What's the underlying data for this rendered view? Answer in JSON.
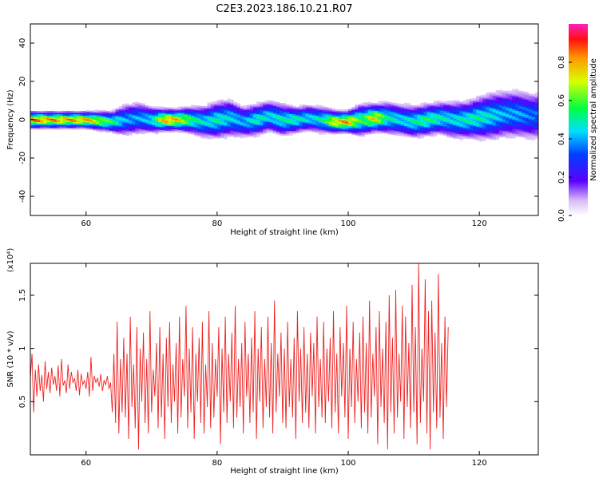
{
  "title": "C2E3.2023.186.10.21.R07",
  "colorbar": {
    "label": "Normalized spectral amplitude",
    "ticks": [
      "0.0",
      "0.2",
      "0.4",
      "0.6",
      "0.8"
    ]
  },
  "colors": {
    "snr_line": "#ee2222",
    "spectrum_peak": "#ff2020",
    "background": "#ffffff"
  },
  "chart_data": [
    {
      "type": "heatmap",
      "xlabel": "Height of straight line (km)",
      "ylabel": "Frequency (Hz)",
      "xlim": [
        51.5,
        129
      ],
      "ylim": [
        -50,
        50
      ],
      "xticks": [
        60,
        80,
        100,
        120
      ],
      "yticks": [
        -40,
        -20,
        0,
        20,
        40
      ],
      "value_range": [
        0.0,
        1.0
      ],
      "ridge": {
        "x": [
          52,
          56,
          60,
          64,
          66,
          68,
          70,
          72,
          74,
          76,
          78,
          80,
          82,
          84,
          86,
          88,
          90,
          92,
          94,
          96,
          98,
          100,
          102,
          104,
          106,
          108,
          110,
          112,
          114,
          116,
          118,
          120,
          122,
          124,
          126,
          128
        ],
        "freq": [
          0,
          0,
          0,
          -1,
          0,
          1,
          0,
          0,
          0,
          0,
          -1,
          0,
          1,
          -1,
          0,
          2,
          0,
          0,
          1,
          0,
          -1,
          -1,
          0,
          1,
          1,
          0,
          -1,
          0,
          1,
          0,
          0,
          1,
          2,
          3,
          3,
          2
        ],
        "amplitude": [
          0.95,
          0.9,
          0.9,
          0.6,
          0.45,
          0.45,
          0.5,
          0.9,
          0.85,
          0.6,
          0.5,
          0.55,
          0.5,
          0.45,
          0.55,
          0.5,
          0.55,
          0.55,
          0.5,
          0.55,
          0.85,
          0.9,
          0.6,
          0.85,
          0.55,
          0.5,
          0.55,
          0.6,
          0.55,
          0.5,
          0.55,
          0.55,
          0.5,
          0.45,
          0.45,
          0.4
        ],
        "spread_hz": [
          3,
          3,
          3,
          4,
          6,
          6,
          5,
          4,
          4,
          5,
          6,
          7,
          7,
          6,
          6,
          6,
          6,
          5,
          5,
          5,
          4,
          4,
          6,
          5,
          6,
          6,
          6,
          6,
          6,
          7,
          7,
          8,
          9,
          9,
          9,
          9
        ]
      }
    },
    {
      "type": "line",
      "xlabel": "Height of straight line (km)",
      "ylabel": "SNR (10 * v/v)",
      "multiplier_label": "(x10⁴)",
      "xlim": [
        51.5,
        129
      ],
      "ylim": [
        0.0,
        1.8
      ],
      "xticks": [
        60,
        80,
        100,
        120
      ],
      "yticks": [
        0.5,
        1.0,
        1.5
      ],
      "series": [
        {
          "x_start": 51.5,
          "x_step": 0.25,
          "values": [
            0.72,
            0.95,
            0.4,
            0.8,
            0.55,
            0.85,
            0.6,
            0.75,
            0.5,
            0.88,
            0.62,
            0.78,
            0.58,
            0.82,
            0.66,
            0.74,
            0.6,
            0.84,
            0.55,
            0.9,
            0.65,
            0.7,
            0.58,
            0.85,
            0.62,
            0.78,
            0.68,
            0.72,
            0.6,
            0.8,
            0.56,
            0.76,
            0.66,
            0.7,
            0.62,
            0.78,
            0.55,
            0.92,
            0.6,
            0.74,
            0.68,
            0.72,
            0.64,
            0.76,
            0.6,
            0.7,
            0.66,
            0.74,
            0.62,
            0.68,
            0.4,
            0.95,
            0.3,
            1.25,
            0.2,
            0.9,
            0.4,
            1.1,
            0.35,
            0.95,
            0.15,
            1.3,
            0.45,
            0.85,
            0.25,
            1.2,
            0.05,
            1.0,
            0.5,
            1.15,
            0.3,
            0.9,
            0.2,
            1.35,
            0.4,
            0.8,
            0.55,
            1.05,
            0.25,
            1.2,
            0.35,
            0.95,
            0.15,
            1.1,
            0.45,
            1.25,
            0.3,
            0.85,
            0.5,
            1.05,
            0.2,
            1.3,
            0.35,
            0.9,
            0.55,
            1.4,
            0.25,
            1.0,
            0.4,
            1.2,
            0.15,
            0.95,
            0.5,
            1.1,
            0.3,
            1.25,
            0.2,
            0.85,
            0.45,
            1.35,
            0.25,
            1.05,
            0.35,
            0.9,
            0.55,
            1.2,
            0.1,
            1.0,
            0.4,
            1.3,
            0.3,
            0.95,
            0.5,
            1.15,
            0.25,
            1.4,
            0.35,
            0.9,
            0.45,
            1.05,
            0.2,
            1.25,
            0.55,
            0.95,
            0.3,
            1.1,
            0.4,
            1.35,
            0.15,
            1.0,
            0.5,
            1.2,
            0.25,
            0.9,
            0.45,
            1.3,
            0.35,
            1.05,
            0.2,
            1.45,
            0.4,
            0.95,
            0.55,
            1.15,
            0.3,
            1.0,
            0.25,
            1.25,
            0.45,
            0.9,
            0.35,
            1.1,
            0.15,
            1.35,
            0.5,
            1.0,
            0.3,
            1.2,
            0.4,
            0.95,
            0.25,
            1.15,
            0.55,
            1.05,
            0.2,
            1.3,
            0.45,
            0.9,
            0.35,
            1.25,
            0.3,
            1.0,
            0.5,
            1.1,
            0.25,
            1.35,
            0.4,
            0.95,
            0.2,
            1.2,
            0.55,
            1.05,
            0.35,
            1.4,
            0.15,
            1.0,
            0.45,
            1.25,
            0.3,
            0.9,
            0.5,
            1.15,
            0.25,
            1.3,
            0.4,
            1.05,
            0.2,
            1.45,
            0.35,
            0.95,
            0.55,
            1.2,
            0.1,
            1.35,
            0.45,
            1.0,
            0.3,
            1.25,
            0.05,
            1.5,
            0.4,
            1.1,
            0.2,
            1.55,
            0.35,
            0.95,
            0.5,
            1.4,
            0.15,
            1.3,
            0.45,
            1.05,
            0.25,
            1.6,
            0.4,
            1.2,
            0.1,
            1.8,
            0.3,
            1.0,
            0.5,
            1.65,
            0.2,
            1.35,
            0.05,
            1.45,
            0.4,
            1.15,
            0.25,
            1.7,
            0.35,
            1.05,
            0.15,
            1.3,
            0.45,
            1.2
          ]
        }
      ]
    }
  ]
}
